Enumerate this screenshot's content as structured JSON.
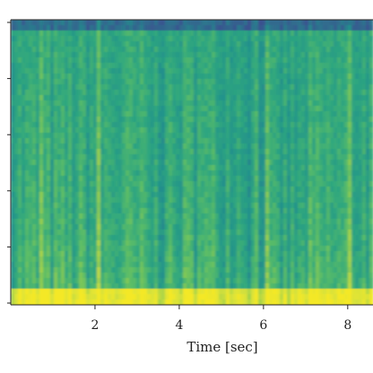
{
  "chart_data": {
    "type": "heatmap",
    "kind": "spectrogram",
    "colormap": "viridis",
    "colormap_stops": [
      "#3b4f8f",
      "#2f6f8e",
      "#23918c",
      "#2ea67f",
      "#5dbd66",
      "#9fd14a",
      "#d8e23a",
      "#f4e826"
    ],
    "xlabel": "Time [sec]",
    "ylabel": "",
    "xlim": [
      0,
      8.6
    ],
    "xticks": [
      2,
      4,
      6,
      8
    ],
    "xtick_labels": [
      "2",
      "4",
      "6",
      "8"
    ],
    "y_tick_count": 6,
    "y_tick_labels": [],
    "grid": false,
    "legend": false
  }
}
